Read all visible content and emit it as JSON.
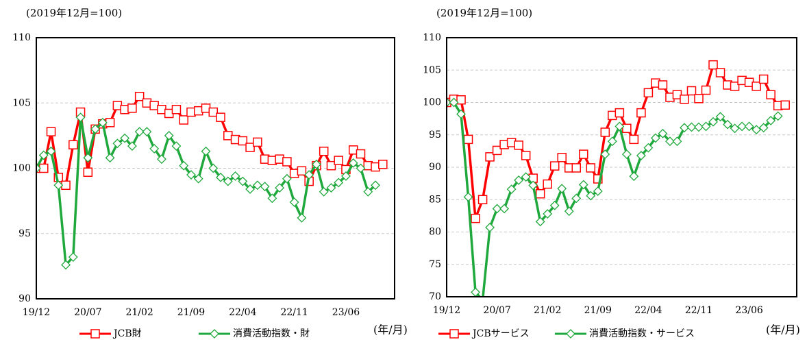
{
  "chart_data": [
    {
      "type": "line",
      "note": "(2019年12月=100)",
      "x_unit": "(年/月)",
      "categories": [
        "19/12",
        null,
        null,
        null,
        null,
        null,
        null,
        "20/07",
        null,
        null,
        null,
        null,
        null,
        null,
        "21/02",
        null,
        null,
        null,
        null,
        null,
        null,
        "21/09",
        null,
        null,
        null,
        null,
        null,
        null,
        "22/04",
        null,
        null,
        null,
        null,
        null,
        null,
        "22/11",
        null,
        null,
        null,
        null,
        null,
        null,
        "23/06",
        null,
        null,
        null,
        null,
        null
      ],
      "ylim": [
        90,
        110
      ],
      "yticks": [
        90,
        95,
        100,
        105,
        110
      ],
      "grid": true,
      "series": [
        {
          "name": "JCB財",
          "color": "#ff0000",
          "marker": "square",
          "values": [
            100.0,
            100.0,
            102.8,
            99.3,
            98.7,
            101.8,
            104.3,
            99.7,
            103.0,
            103.4,
            103.5,
            104.8,
            104.5,
            104.6,
            105.5,
            105.0,
            104.8,
            104.5,
            104.2,
            104.5,
            103.7,
            104.3,
            104.4,
            104.6,
            104.3,
            103.9,
            102.5,
            102.2,
            102.1,
            101.6,
            102.0,
            100.7,
            100.6,
            100.7,
            100.5,
            99.6,
            99.8,
            99.0,
            100.2,
            101.3,
            100.2,
            100.6,
            99.9,
            101.4,
            101.1,
            100.2,
            100.1,
            100.3
          ]
        },
        {
          "name": "消費活動指数・財",
          "color": "#1fa83c",
          "marker": "diamond",
          "values": [
            100.0,
            101.0,
            101.3,
            98.7,
            92.6,
            93.2,
            103.9,
            100.8,
            103.0,
            103.5,
            100.8,
            101.9,
            102.3,
            101.7,
            102.8,
            102.8,
            101.5,
            100.7,
            102.5,
            101.7,
            100.2,
            99.5,
            99.2,
            101.3,
            100.0,
            99.3,
            99.0,
            99.4,
            99.0,
            98.4,
            98.7,
            98.6,
            97.7,
            98.5,
            99.2,
            97.4,
            96.2,
            99.5,
            100.3,
            98.2,
            98.5,
            98.9,
            99.4,
            100.4,
            100.0,
            98.2,
            98.7,
            null
          ]
        }
      ]
    },
    {
      "type": "line",
      "note": "(2019年12月=100)",
      "x_unit": "(年/月)",
      "categories": [
        "19/12",
        null,
        null,
        null,
        null,
        null,
        null,
        "20/07",
        null,
        null,
        null,
        null,
        null,
        null,
        "21/02",
        null,
        null,
        null,
        null,
        null,
        null,
        "21/09",
        null,
        null,
        null,
        null,
        null,
        null,
        "22/04",
        null,
        null,
        null,
        null,
        null,
        null,
        "22/11",
        null,
        null,
        null,
        null,
        null,
        null,
        "23/06",
        null,
        null,
        null,
        null,
        null
      ],
      "ylim": [
        70,
        110
      ],
      "yticks": [
        70,
        75,
        80,
        85,
        90,
        95,
        100,
        105,
        110
      ],
      "grid": true,
      "series": [
        {
          "name": "JCBサービス",
          "color": "#ff0000",
          "marker": "square",
          "values": [
            100.0,
            100.5,
            100.4,
            94.3,
            82.1,
            85.0,
            91.6,
            92.6,
            93.5,
            93.8,
            93.4,
            91.8,
            88.3,
            85.9,
            87.4,
            90.2,
            91.5,
            89.9,
            89.9,
            92.0,
            89.9,
            88.2,
            95.4,
            98.0,
            98.4,
            96.0,
            94.3,
            98.4,
            101.5,
            103.0,
            102.7,
            100.8,
            101.2,
            100.5,
            101.8,
            100.6,
            101.9,
            105.8,
            104.6,
            102.7,
            102.5,
            103.4,
            103.1,
            102.5,
            103.6,
            101.2,
            99.5,
            99.6
          ]
        },
        {
          "name": "消費活動指数・サービス",
          "color": "#1fa83c",
          "marker": "diamond",
          "values": [
            100.0,
            100.0,
            98.2,
            85.4,
            70.7,
            69.5,
            80.7,
            83.6,
            83.6,
            86.6,
            88.0,
            88.5,
            87.2,
            81.6,
            82.8,
            84.1,
            86.7,
            83.2,
            85.2,
            87.3,
            85.6,
            86.3,
            92.0,
            94.0,
            96.3,
            92.0,
            88.6,
            91.8,
            93.0,
            94.5,
            95.2,
            94.0,
            94.0,
            96.1,
            96.2,
            96.2,
            96.3,
            97.0,
            97.8,
            96.6,
            96.0,
            96.3,
            96.3,
            95.8,
            96.1,
            97.2,
            97.9,
            null
          ]
        }
      ]
    }
  ]
}
